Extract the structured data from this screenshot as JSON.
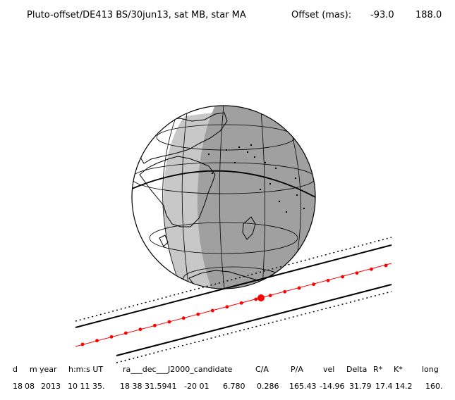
{
  "header": {
    "title": "Pluto-offset/DE413 BS/30jun13, sat MB, star MA",
    "offset_label": "Offset (mas):",
    "offset_x": "-93.0",
    "offset_y": "188.0"
  },
  "table": {
    "columns": [
      "d",
      "m",
      "year",
      "h:m:s UT",
      "ra___dec___J2000_candidate",
      "C/A",
      "P/A",
      "vel",
      "Delta",
      "R*",
      "K*",
      "long"
    ],
    "values": [
      "18",
      "08",
      "2013",
      "10 11 35.",
      "18 38 31.5941",
      "-20 01",
      "6.780",
      "0.286",
      "165.43",
      "-14.96",
      "31.79",
      "17.4",
      "14.2",
      "160."
    ]
  },
  "colors": {
    "night": "#a0a0a0",
    "twilight": "#c8c8c8",
    "day": "#ffffff",
    "track": "#ff0000",
    "lines": "#000000"
  }
}
